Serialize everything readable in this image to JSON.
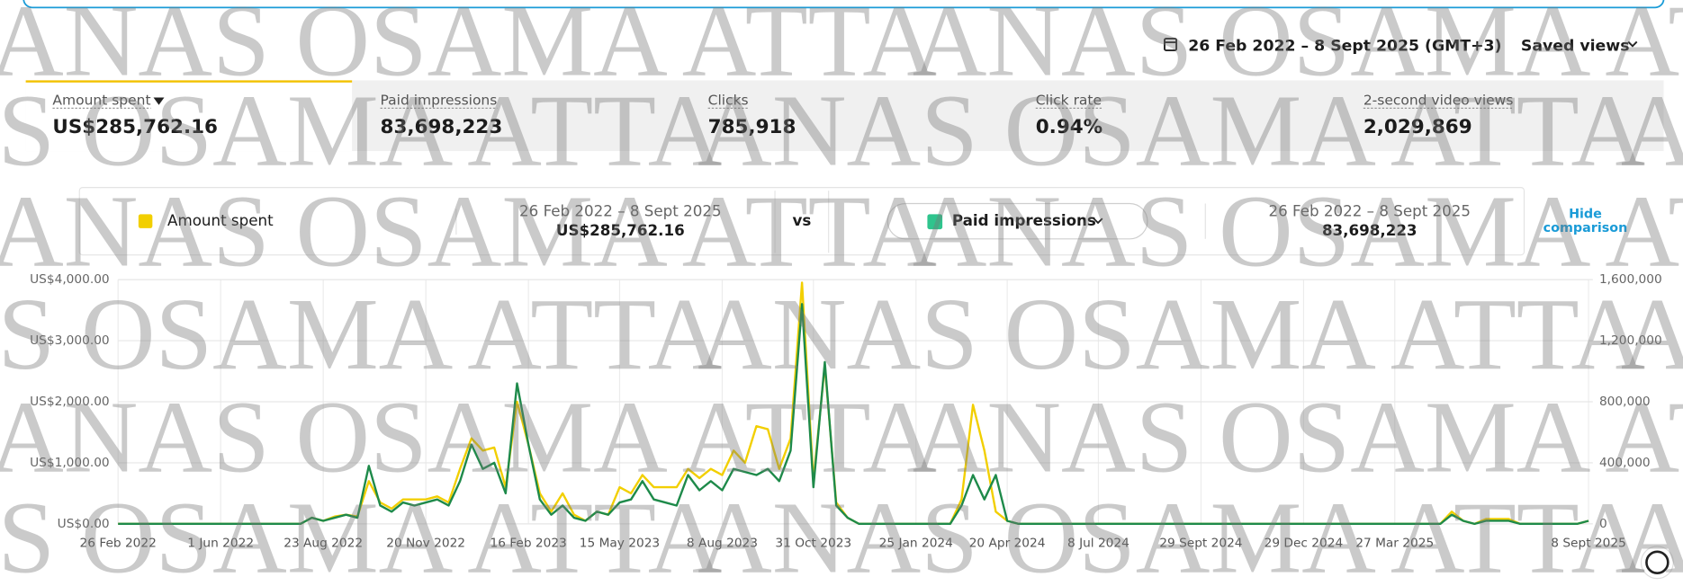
{
  "header": {
    "date_range": "26 Feb 2022 – 8 Sept 2025 (GMT+3)",
    "saved_views": "Saved views"
  },
  "metrics": [
    {
      "label": "Amount spent",
      "value": "US$285,762.16"
    },
    {
      "label": "Paid impressions",
      "value": "83,698,223"
    },
    {
      "label": "Clicks",
      "value": "785,918"
    },
    {
      "label": "Click rate",
      "value": "0.94%"
    },
    {
      "label": "2-second video views",
      "value": "2,029,869"
    }
  ],
  "comparison": {
    "range": "26 Feb 2022 – 8 Sept 2025",
    "vs": "vs",
    "hide": [
      "Hide",
      "comparison"
    ]
  },
  "watermark": "ANAS OSAMA ATTA",
  "chart_data": {
    "type": "line",
    "categories": [
      "26 Feb 2022",
      null,
      null,
      null,
      null,
      null,
      null,
      null,
      null,
      "1 Jun 2022",
      null,
      null,
      null,
      null,
      null,
      null,
      null,
      null,
      "23 Aug 2022",
      null,
      null,
      null,
      null,
      null,
      null,
      null,
      null,
      "20 Nov 2022",
      null,
      null,
      null,
      null,
      null,
      null,
      null,
      null,
      "16 Feb 2023",
      null,
      null,
      null,
      null,
      null,
      null,
      null,
      "15 May 2023",
      null,
      null,
      null,
      null,
      null,
      null,
      null,
      null,
      "8 Aug 2023",
      null,
      null,
      null,
      null,
      null,
      null,
      null,
      "31 Oct 2023",
      null,
      null,
      null,
      null,
      null,
      null,
      null,
      null,
      "25 Jan 2024",
      null,
      null,
      null,
      null,
      null,
      null,
      null,
      "20 Apr 2024",
      null,
      null,
      null,
      null,
      null,
      null,
      null,
      "8 Jul 2024",
      null,
      null,
      null,
      null,
      null,
      null,
      null,
      null,
      "29 Sept 2024",
      null,
      null,
      null,
      null,
      null,
      null,
      null,
      null,
      "29 Dec 2024",
      null,
      null,
      null,
      null,
      null,
      null,
      null,
      "27 Mar 2025",
      null,
      null,
      null,
      null,
      null,
      null,
      null,
      null,
      null,
      null,
      null,
      null,
      null,
      null,
      null,
      null,
      "8 Sept 2025"
    ],
    "series": [
      {
        "name": "Amount spent",
        "color": "#f2cf00",
        "axis": "y",
        "values": [
          0,
          0,
          0,
          0,
          0,
          0,
          0,
          0,
          0,
          0,
          0,
          0,
          0,
          0,
          0,
          0,
          0,
          100,
          50,
          120,
          150,
          120,
          700,
          350,
          250,
          400,
          400,
          400,
          450,
          350,
          900,
          1400,
          1200,
          1250,
          600,
          2000,
          1300,
          500,
          200,
          500,
          150,
          50,
          200,
          150,
          600,
          500,
          800,
          600,
          600,
          600,
          900,
          750,
          900,
          800,
          1200,
          1000,
          1600,
          1550,
          900,
          1400,
          3950,
          700,
          2600,
          350,
          100,
          0,
          0,
          0,
          0,
          0,
          0,
          0,
          0,
          0,
          400,
          1950,
          1200,
          200,
          50,
          0,
          0,
          0,
          0,
          0,
          0,
          0,
          0,
          0,
          0,
          0,
          0,
          0,
          0,
          0,
          0,
          0,
          0,
          0,
          0,
          0,
          0,
          0,
          0,
          0,
          0,
          0,
          0,
          0,
          0,
          0,
          0,
          0,
          0,
          0,
          0,
          0,
          0,
          200,
          50,
          0,
          80,
          80,
          80,
          0,
          0,
          0,
          0,
          0,
          0,
          50
        ]
      },
      {
        "name": "Paid impressions",
        "color": "#1e8a4a",
        "axis": "y2",
        "values": [
          0,
          0,
          0,
          0,
          0,
          0,
          0,
          0,
          0,
          0,
          0,
          0,
          0,
          0,
          0,
          0,
          0,
          40000,
          20000,
          40000,
          60000,
          40000,
          380000,
          120000,
          80000,
          140000,
          120000,
          140000,
          160000,
          120000,
          280000,
          520000,
          360000,
          400000,
          200000,
          920000,
          520000,
          160000,
          60000,
          120000,
          40000,
          20000,
          80000,
          60000,
          140000,
          160000,
          280000,
          160000,
          140000,
          120000,
          320000,
          220000,
          280000,
          220000,
          360000,
          340000,
          320000,
          360000,
          280000,
          480000,
          1440000,
          240000,
          1060000,
          120000,
          40000,
          0,
          0,
          0,
          0,
          0,
          0,
          0,
          0,
          0,
          120000,
          320000,
          160000,
          320000,
          20000,
          0,
          0,
          0,
          0,
          0,
          0,
          0,
          0,
          0,
          0,
          0,
          0,
          0,
          0,
          0,
          0,
          0,
          0,
          0,
          0,
          0,
          0,
          0,
          0,
          0,
          0,
          0,
          0,
          0,
          0,
          0,
          0,
          0,
          0,
          0,
          0,
          0,
          0,
          60000,
          20000,
          0,
          20000,
          20000,
          20000,
          0,
          0,
          0,
          0,
          0,
          0,
          20000
        ]
      }
    ],
    "ylim": [
      0,
      4000
    ],
    "yticks": [
      {
        "value": 0,
        "label": "US$0.00"
      },
      {
        "value": 1000,
        "label": "US$1,000.00"
      },
      {
        "value": 2000,
        "label": "US$2,000.00"
      },
      {
        "value": 3000,
        "label": "US$3,000.00"
      },
      {
        "value": 4000,
        "label": "US$4,000.00"
      }
    ],
    "y2lim": [
      0,
      1600000
    ],
    "y2ticks": [
      0,
      {
        "value": 400000,
        "label": "400,000"
      },
      {
        "value": 800000,
        "label": "800,000"
      },
      {
        "value": 1200000,
        "label": "1,200,000"
      },
      {
        "value": 1600000,
        "label": "1,600,000"
      }
    ],
    "grid": true
  }
}
